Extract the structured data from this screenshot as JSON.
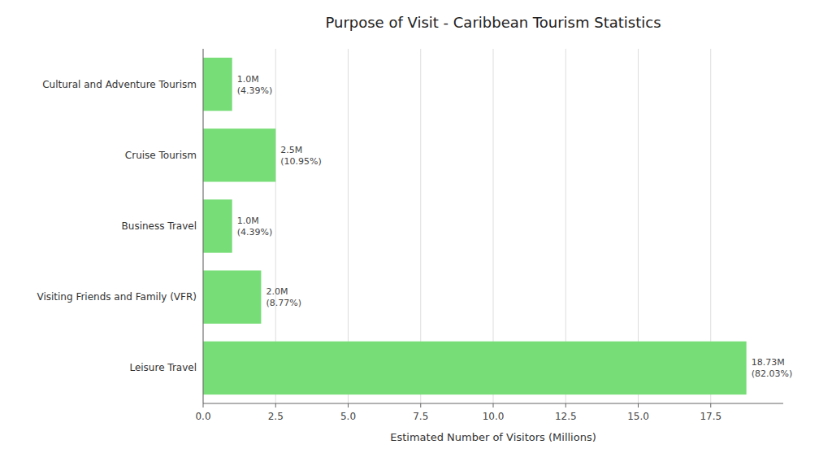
{
  "chart_data": {
    "type": "bar",
    "orientation": "horizontal",
    "title": "Purpose of Visit - Caribbean Tourism Statistics",
    "xlabel": "Estimated Number of Visitors (Millions)",
    "categories": [
      "Leisure Travel",
      "Visiting Friends and Family (VFR)",
      "Business Travel",
      "Cruise Tourism",
      "Cultural and Adventure Tourism"
    ],
    "values": [
      18.73,
      2.0,
      1.0,
      2.5,
      1.0
    ],
    "value_labels": [
      "18.73M\n(82.03%)",
      "2.0M\n(8.77%)",
      "1.0M\n(4.39%)",
      "2.5M\n(10.95%)",
      "1.0M\n(4.39%)"
    ],
    "data_labels": true,
    "color": "#77DD77",
    "xlim": [
      0,
      20
    ],
    "xticks": [
      {
        "value": 0,
        "label": "0.0"
      },
      2.5,
      {
        "value": 5,
        "label": "5.0"
      },
      7.5,
      {
        "value": 10,
        "label": "10.0"
      },
      12.5,
      {
        "value": 15,
        "label": "15.0"
      },
      17.5
    ],
    "grid": true
  }
}
